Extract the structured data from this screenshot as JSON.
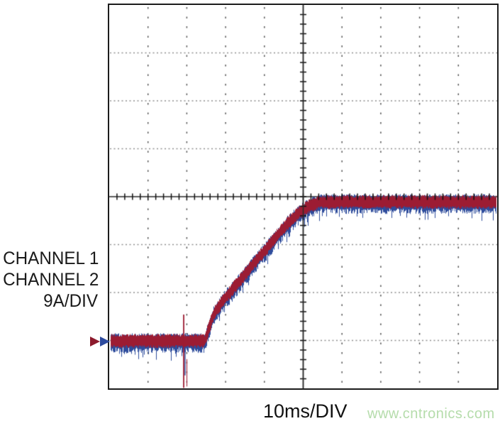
{
  "left_labels": {
    "channel1": "CHANNEL 1",
    "channel2": "CHANNEL 2",
    "scale": "9A/DIV"
  },
  "x_axis_label": "10ms/DIV",
  "watermark": {
    "text": "www.cntronics.com",
    "color": "#b5dcab"
  },
  "colors": {
    "channel1": "#9c1c33",
    "channel2": "#2e4c9c",
    "trigger_ch1": "#8c1a2c",
    "trigger_ch2": "#2c4a9e",
    "grid_dots_h": "#8d8d8d",
    "grid_dots_v": "#565656",
    "graticule": "#2a2a2a",
    "tick": "#111111",
    "border": "#1c1c1c"
  },
  "chart_data": {
    "type": "line",
    "title": "",
    "xlabel": "10ms/DIV",
    "ylabel": "9A/DIV",
    "x_axis": {
      "per_division_ms": 10,
      "divisions": 10,
      "range_ms": [
        0,
        100
      ],
      "minor_per_division": 5
    },
    "y_axis": {
      "per_division_A": 9,
      "divisions": 8,
      "minor_per_division": 5
    },
    "grid": {
      "major_lines": "dotted",
      "center_crosshair": "solid-with-minor-ticks"
    },
    "trigger_level_div": 0.99,
    "series": [
      {
        "name": "CHANNEL 1",
        "color_key": "channel1"
      },
      {
        "name": "CHANNEL 2",
        "color_key": "channel2",
        "offset_div": -0.05
      }
    ],
    "points_ms_div": [
      [
        0,
        0.99
      ],
      [
        19.0,
        0.99
      ],
      [
        24.5,
        0.99
      ],
      [
        26.9,
        1.56
      ],
      [
        29.6,
        1.87
      ],
      [
        32.3,
        2.12
      ],
      [
        35.0,
        2.39
      ],
      [
        37.7,
        2.66
      ],
      [
        40.5,
        2.92
      ],
      [
        43.2,
        3.19
      ],
      [
        45.9,
        3.44
      ],
      [
        48.6,
        3.65
      ],
      [
        51.4,
        3.8
      ],
      [
        54.1,
        3.89
      ],
      [
        100,
        3.89
      ]
    ],
    "transient_spike": {
      "time_ms": 19.2,
      "red_from_div": 1.54,
      "red_to_div": 0.01,
      "blue_from_div": 1.13,
      "blue_to_div": 0.27,
      "secondary_red_from_div": 0.61,
      "secondary_red_to_div": 0.04
    }
  }
}
